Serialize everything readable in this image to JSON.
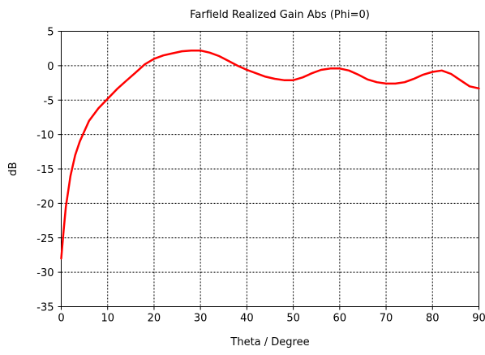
{
  "chart_data": {
    "type": "line",
    "title": "Farfield Realized Gain Abs (Phi=0)",
    "xlabel": "Theta / Degree",
    "ylabel": "dB",
    "xlim": [
      0,
      90
    ],
    "ylim": [
      -35,
      5
    ],
    "xticks": [
      "0",
      "10",
      "20",
      "30",
      "40",
      "50",
      "60",
      "70",
      "80",
      "90"
    ],
    "yticks": [
      "5",
      "0",
      "-5",
      "-10",
      "-15",
      "-20",
      "-25",
      "-30",
      "-35"
    ],
    "grid": true,
    "series": [
      {
        "color": "#ff0000",
        "x": [
          0,
          0.5,
          1,
          2,
          3,
          4,
          5,
          6,
          8,
          10,
          12,
          14,
          16,
          18,
          20,
          22,
          24,
          26,
          28,
          30,
          32,
          34,
          36,
          38,
          40,
          42,
          44,
          46,
          48,
          50,
          52,
          54,
          56,
          58,
          60,
          62,
          64,
          66,
          68,
          70,
          72,
          74,
          76,
          78,
          80,
          82,
          84,
          86,
          88,
          90
        ],
        "y": [
          -28,
          -24,
          -20.5,
          -16,
          -13,
          -11,
          -9.5,
          -8,
          -6.2,
          -4.8,
          -3.4,
          -2.2,
          -1,
          0.2,
          1,
          1.5,
          1.8,
          2.1,
          2.2,
          2.2,
          1.9,
          1.4,
          0.7,
          0,
          -0.6,
          -1.1,
          -1.6,
          -1.9,
          -2.1,
          -2.1,
          -1.7,
          -1.1,
          -0.6,
          -0.4,
          -0.4,
          -0.7,
          -1.3,
          -2,
          -2.4,
          -2.6,
          -2.6,
          -2.4,
          -1.9,
          -1.3,
          -0.9,
          -0.7,
          -1.2,
          -2.1,
          -3,
          -3.3
        ]
      }
    ]
  }
}
